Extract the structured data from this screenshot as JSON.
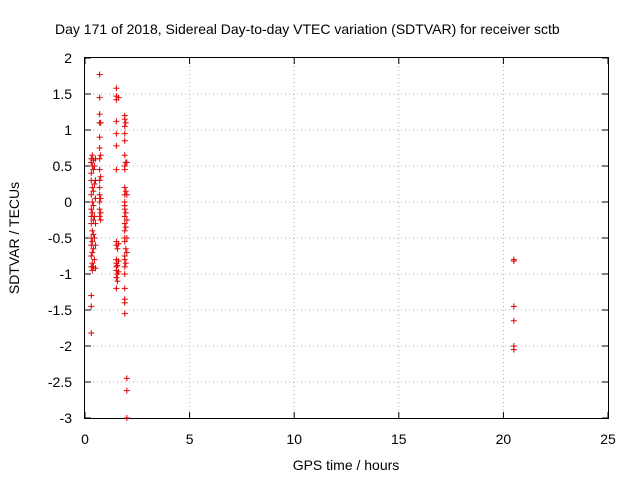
{
  "chart_data": {
    "type": "scatter",
    "title": "Day 171 of 2018, Sidereal Day-to-day VTEC variation (SDTVAR) for receiver sctb",
    "xlabel": "GPS time / hours",
    "ylabel": "SDTVAR / TECUs",
    "xlim": [
      0,
      25
    ],
    "ylim": [
      -3,
      2
    ],
    "x_ticks": [
      "0",
      "5",
      "10",
      "15",
      "20",
      "25"
    ],
    "y_ticks": [
      "2",
      "1.5",
      "1",
      "0.5",
      "0",
      "-0.5",
      "-1",
      "-1.5",
      "-2",
      "-2.5",
      "-3"
    ],
    "grid": true,
    "marker": "+",
    "color": "#e00000",
    "points": [
      [
        0.3,
        0.6
      ],
      [
        0.3,
        0.55
      ],
      [
        0.3,
        0.4
      ],
      [
        0.3,
        0.3
      ],
      [
        0.3,
        0.1
      ],
      [
        0.3,
        -0.1
      ],
      [
        0.3,
        -0.2
      ],
      [
        0.3,
        -0.3
      ],
      [
        0.3,
        -0.5
      ],
      [
        0.3,
        -0.6
      ],
      [
        0.3,
        -0.75
      ],
      [
        0.3,
        -0.9
      ],
      [
        0.3,
        -1.3
      ],
      [
        0.3,
        -1.45
      ],
      [
        0.3,
        -1.82
      ],
      [
        0.35,
        0.65
      ],
      [
        0.35,
        0.5
      ],
      [
        0.35,
        0.2
      ],
      [
        0.35,
        0.0
      ],
      [
        0.35,
        -0.15
      ],
      [
        0.35,
        -0.4
      ],
      [
        0.35,
        -0.55
      ],
      [
        0.35,
        -0.7
      ],
      [
        0.35,
        -0.85
      ],
      [
        0.35,
        -0.95
      ],
      [
        0.4,
        0.58
      ],
      [
        0.4,
        0.45
      ],
      [
        0.4,
        0.15
      ],
      [
        0.4,
        -0.05
      ],
      [
        0.4,
        -0.25
      ],
      [
        0.4,
        -0.45
      ],
      [
        0.4,
        -0.65
      ],
      [
        0.4,
        -0.9
      ],
      [
        0.45,
        0.5
      ],
      [
        0.45,
        0.25
      ],
      [
        0.45,
        -0.2
      ],
      [
        0.45,
        -0.5
      ],
      [
        0.45,
        -0.8
      ],
      [
        0.5,
        0.6
      ],
      [
        0.5,
        0.3
      ],
      [
        0.5,
        0.05
      ],
      [
        0.5,
        -0.3
      ],
      [
        0.5,
        -0.6
      ],
      [
        0.5,
        -0.92
      ],
      [
        0.7,
        1.77
      ],
      [
        0.7,
        1.45
      ],
      [
        0.7,
        1.22
      ],
      [
        0.7,
        1.1
      ],
      [
        0.7,
        0.9
      ],
      [
        0.7,
        0.75
      ],
      [
        0.7,
        0.6
      ],
      [
        0.7,
        0.45
      ],
      [
        0.7,
        0.3
      ],
      [
        0.7,
        0.2
      ],
      [
        0.7,
        0.1
      ],
      [
        0.7,
        0.0
      ],
      [
        0.7,
        -0.1
      ],
      [
        0.7,
        -0.2
      ],
      [
        0.75,
        1.1
      ],
      [
        0.75,
        0.65
      ],
      [
        0.75,
        0.35
      ],
      [
        0.75,
        0.05
      ],
      [
        0.75,
        -0.15
      ],
      [
        0.75,
        -0.25
      ],
      [
        1.5,
        1.58
      ],
      [
        1.5,
        1.47
      ],
      [
        1.5,
        1.42
      ],
      [
        1.5,
        1.12
      ],
      [
        1.5,
        0.95
      ],
      [
        1.5,
        0.78
      ],
      [
        1.5,
        0.45
      ],
      [
        1.5,
        -0.55
      ],
      [
        1.5,
        -0.6
      ],
      [
        1.5,
        -0.8
      ],
      [
        1.5,
        -0.85
      ],
      [
        1.5,
        -0.9
      ],
      [
        1.5,
        -0.95
      ],
      [
        1.5,
        -1.05
      ],
      [
        1.5,
        -1.2
      ],
      [
        1.55,
        -0.65
      ],
      [
        1.55,
        -0.88
      ],
      [
        1.55,
        -1.0
      ],
      [
        1.55,
        -1.1
      ],
      [
        1.6,
        1.45
      ],
      [
        1.6,
        -0.58
      ],
      [
        1.6,
        -0.82
      ],
      [
        1.6,
        -0.97
      ],
      [
        1.9,
        1.2
      ],
      [
        1.9,
        1.15
      ],
      [
        1.9,
        1.05
      ],
      [
        1.9,
        0.95
      ],
      [
        1.9,
        0.85
      ],
      [
        1.9,
        0.65
      ],
      [
        1.9,
        0.5
      ],
      [
        1.9,
        0.45
      ],
      [
        1.9,
        0.2
      ],
      [
        1.9,
        0.1
      ],
      [
        1.9,
        0.0
      ],
      [
        1.9,
        -0.05
      ],
      [
        1.9,
        -0.1
      ],
      [
        1.9,
        -0.2
      ],
      [
        1.9,
        -0.3
      ],
      [
        1.9,
        -0.4
      ],
      [
        1.9,
        -0.5
      ],
      [
        1.9,
        -0.55
      ],
      [
        1.9,
        -0.75
      ],
      [
        1.9,
        -0.8
      ],
      [
        1.9,
        -0.9
      ],
      [
        1.9,
        -1.0
      ],
      [
        1.9,
        -1.2
      ],
      [
        1.9,
        -1.35
      ],
      [
        1.9,
        -1.4
      ],
      [
        1.9,
        -1.55
      ],
      [
        1.95,
        1.1
      ],
      [
        1.95,
        0.55
      ],
      [
        1.95,
        0.15
      ],
      [
        1.95,
        -0.15
      ],
      [
        1.95,
        -0.35
      ],
      [
        1.95,
        -0.65
      ],
      [
        1.95,
        -0.85
      ],
      [
        2.0,
        0.55
      ],
      [
        2.0,
        0.1
      ],
      [
        2.0,
        -0.25
      ],
      [
        2.0,
        -0.5
      ],
      [
        2.0,
        -0.7
      ],
      [
        2.0,
        -2.45
      ],
      [
        2.0,
        -2.62
      ],
      [
        2.0,
        -3.0
      ],
      [
        20.5,
        -0.8
      ],
      [
        20.5,
        -0.82
      ],
      [
        20.5,
        -1.45
      ],
      [
        20.5,
        -1.65
      ],
      [
        20.5,
        -2.0
      ],
      [
        20.5,
        -2.05
      ]
    ]
  }
}
